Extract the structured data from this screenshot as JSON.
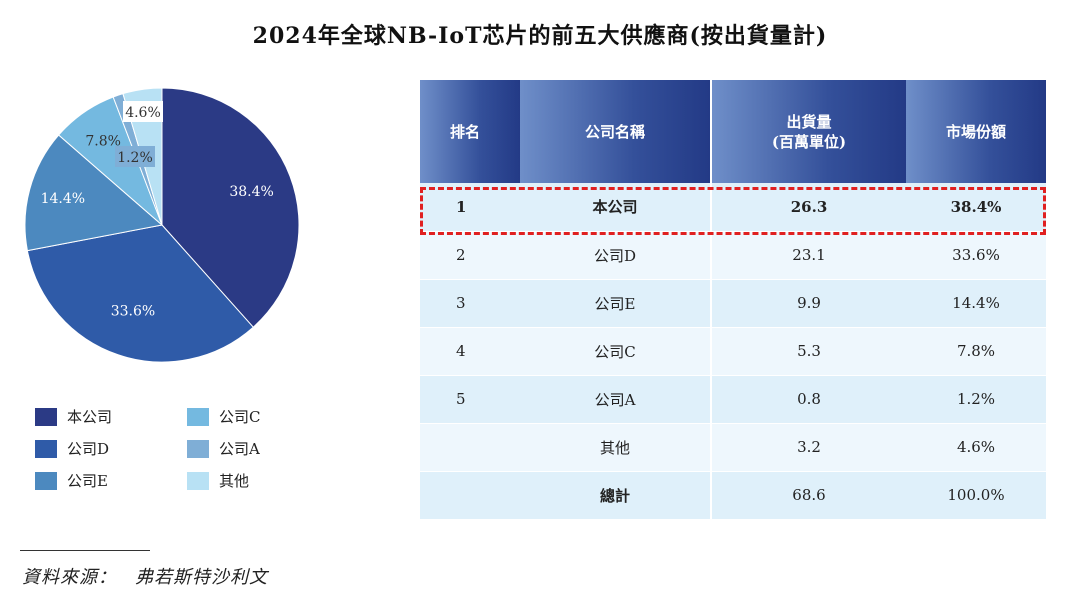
{
  "title": "2024年全球NB-IoT芯片的前五大供應商(按出貨量計)",
  "chart_data": {
    "type": "pie",
    "slices": [
      {
        "label": "本公司",
        "value": 38.4,
        "display": "38.4%",
        "color": "#2b3a85"
      },
      {
        "label": "公司D",
        "value": 33.6,
        "display": "33.6%",
        "color": "#2f5ba8"
      },
      {
        "label": "公司E",
        "value": 14.4,
        "display": "14.4%",
        "color": "#4c89bf"
      },
      {
        "label": "公司C",
        "value": 7.8,
        "display": "7.8%",
        "color": "#74b9e0"
      },
      {
        "label": "公司A",
        "value": 1.2,
        "display": "1.2%",
        "color": "#7faed6"
      },
      {
        "label": "其他",
        "value": 4.6,
        "display": "4.6%",
        "color": "#b8e1f4"
      }
    ]
  },
  "legend": [
    {
      "label": "本公司",
      "color": "#2b3a85"
    },
    {
      "label": "公司C",
      "color": "#74b9e0"
    },
    {
      "label": "公司D",
      "color": "#2f5ba8"
    },
    {
      "label": "公司A",
      "color": "#7faed6"
    },
    {
      "label": "公司E",
      "color": "#4c89bf"
    },
    {
      "label": "其他",
      "color": "#b8e1f4"
    }
  ],
  "table": {
    "headers": {
      "rank": "排名",
      "company": "公司名稱",
      "shipment_line1": "出貨量",
      "shipment_line2": "(百萬單位)",
      "share": "市場份額"
    },
    "rows": [
      {
        "rank": "1",
        "company": "本公司",
        "shipment": "26.3",
        "share": "38.4%"
      },
      {
        "rank": "2",
        "company": "公司D",
        "shipment": "23.1",
        "share": "33.6%"
      },
      {
        "rank": "3",
        "company": "公司E",
        "shipment": "9.9",
        "share": "14.4%"
      },
      {
        "rank": "4",
        "company": "公司C",
        "shipment": "5.3",
        "share": "7.8%"
      },
      {
        "rank": "5",
        "company": "公司A",
        "shipment": "0.8",
        "share": "1.2%"
      },
      {
        "rank": "",
        "company": "其他",
        "shipment": "3.2",
        "share": "4.6%"
      },
      {
        "rank": "",
        "company": "總計",
        "shipment": "68.6",
        "share": "100.0%"
      }
    ]
  },
  "source": {
    "label": "資料來源：",
    "value": "弗若斯特沙利文"
  }
}
